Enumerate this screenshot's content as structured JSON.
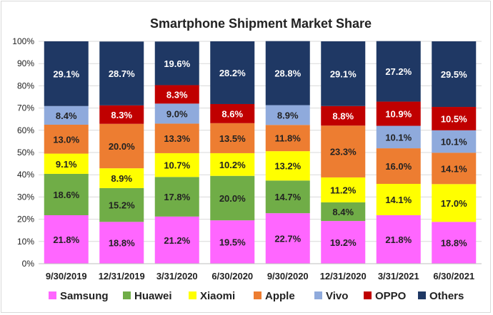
{
  "chart_data": {
    "type": "bar",
    "stacked": true,
    "title": "Smartphone Shipment Market Share",
    "categories": [
      "9/30/2019",
      "12/31/2019",
      "3/31/2020",
      "6/30/2020",
      "9/30/2020",
      "12/31/2020",
      "3/31/2021",
      "6/30/2021"
    ],
    "ylim": [
      0,
      100
    ],
    "yticks": [
      "0%",
      "10%",
      "20%",
      "30%",
      "40%",
      "50%",
      "60%",
      "70%",
      "80%",
      "90%",
      "100%"
    ],
    "grid": true,
    "legend_position": "bottom",
    "series": [
      {
        "name": "Samsung",
        "color": "#ff66ff",
        "label_color": "#222222",
        "values": [
          21.8,
          18.8,
          21.2,
          19.5,
          22.7,
          19.2,
          21.8,
          18.8
        ]
      },
      {
        "name": "Huawei",
        "color": "#70ad47",
        "label_color": "#222222",
        "values": [
          18.6,
          15.2,
          17.8,
          20.0,
          14.7,
          8.4,
          null,
          null
        ]
      },
      {
        "name": "Xiaomi",
        "color": "#ffff00",
        "label_color": "#222222",
        "values": [
          9.1,
          8.9,
          10.7,
          10.2,
          13.2,
          11.2,
          14.1,
          17.0
        ]
      },
      {
        "name": "Apple",
        "color": "#ed7d31",
        "label_color": "#222222",
        "values": [
          13.0,
          20.0,
          13.3,
          13.5,
          11.8,
          23.3,
          16.0,
          14.1
        ]
      },
      {
        "name": "Vivo",
        "color": "#8faadc",
        "label_color": "#222222",
        "values": [
          8.4,
          null,
          9.0,
          null,
          8.9,
          null,
          10.1,
          10.1
        ]
      },
      {
        "name": "OPPO",
        "color": "#c00000",
        "label_color": "#ffffff",
        "values": [
          null,
          8.3,
          8.3,
          8.6,
          null,
          8.8,
          10.9,
          10.5
        ]
      },
      {
        "name": "Others",
        "color": "#1f3864",
        "label_color": "#ffffff",
        "values": [
          29.1,
          28.7,
          19.6,
          28.2,
          28.8,
          29.1,
          27.2,
          29.5
        ]
      }
    ]
  }
}
